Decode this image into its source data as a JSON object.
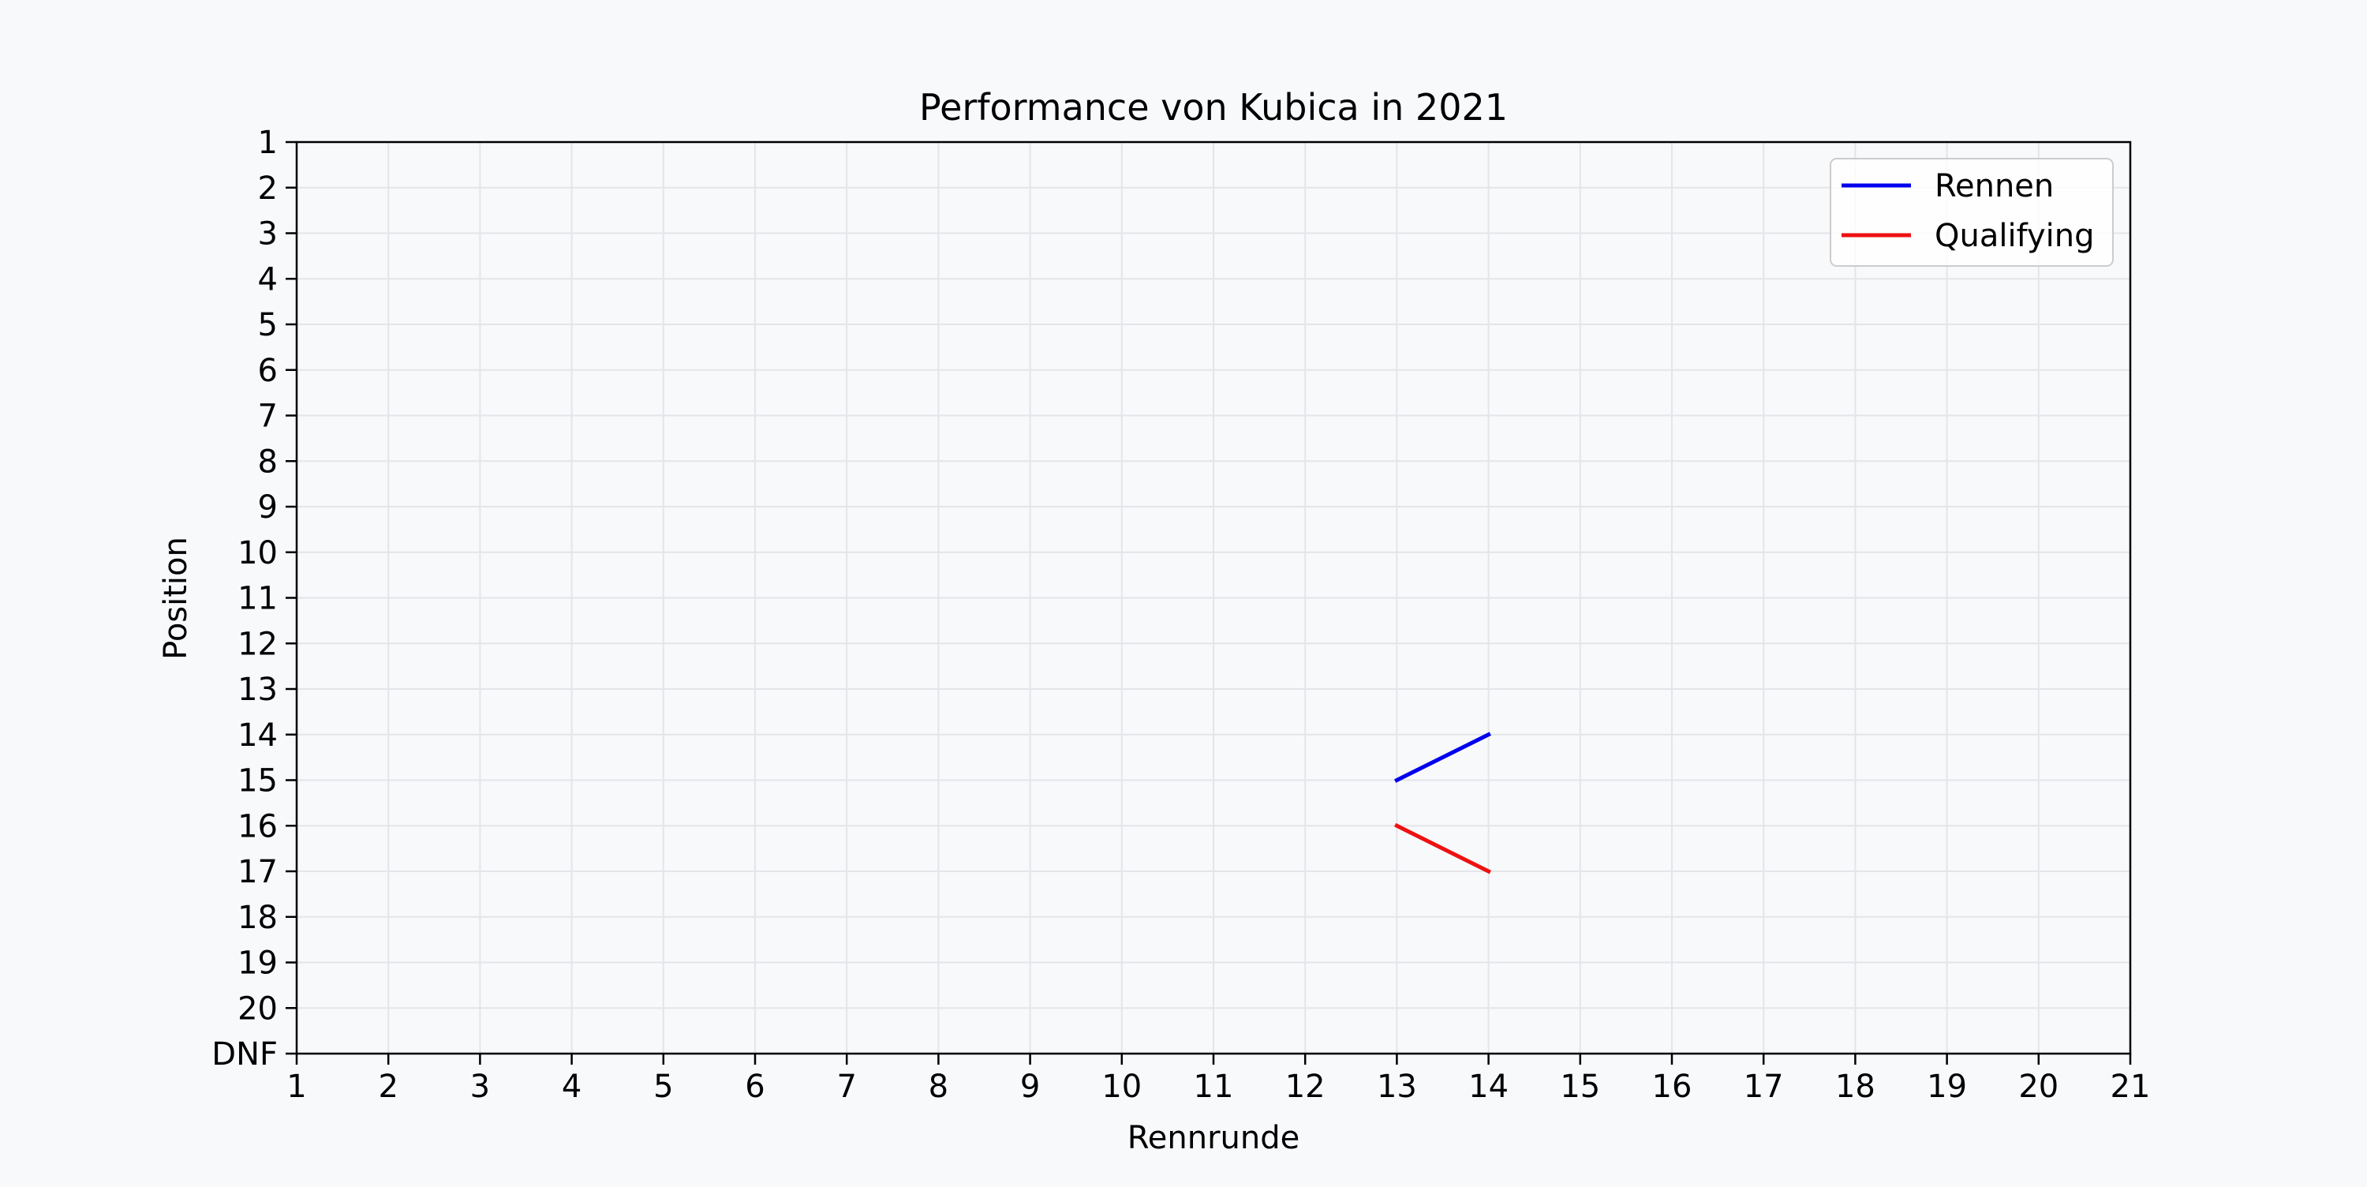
{
  "chart_data": {
    "type": "line",
    "title": "Performance von Kubica in 2021",
    "xlabel": "Rennrunde",
    "ylabel": "Position",
    "xlim": [
      1,
      21
    ],
    "ylim": [
      1,
      21
    ],
    "y_inverted": true,
    "x_ticks": [
      1,
      2,
      3,
      4,
      5,
      6,
      7,
      8,
      9,
      10,
      11,
      12,
      13,
      14,
      15,
      16,
      17,
      18,
      19,
      20,
      21
    ],
    "x_tick_labels": [
      "1",
      "2",
      "3",
      "4",
      "5",
      "6",
      "7",
      "8",
      "9",
      "10",
      "11",
      "12",
      "13",
      "14",
      "15",
      "16",
      "17",
      "18",
      "19",
      "20",
      "21"
    ],
    "y_ticks": [
      1,
      2,
      3,
      4,
      5,
      6,
      7,
      8,
      9,
      10,
      11,
      12,
      13,
      14,
      15,
      16,
      17,
      18,
      19,
      20,
      21
    ],
    "y_tick_labels": [
      "1",
      "2",
      "3",
      "4",
      "5",
      "6",
      "7",
      "8",
      "9",
      "10",
      "11",
      "12",
      "13",
      "14",
      "15",
      "16",
      "17",
      "18",
      "19",
      "20",
      "DNF"
    ],
    "grid": true,
    "legend_position": "top-right",
    "background_color": "#f8f9fb",
    "series": [
      {
        "name": "Rennen",
        "color": "#0000ee",
        "x": [
          13,
          14
        ],
        "y": [
          15,
          14
        ]
      },
      {
        "name": "Qualifying",
        "color": "#ee1111",
        "x": [
          13,
          14
        ],
        "y": [
          16,
          17
        ]
      }
    ]
  }
}
